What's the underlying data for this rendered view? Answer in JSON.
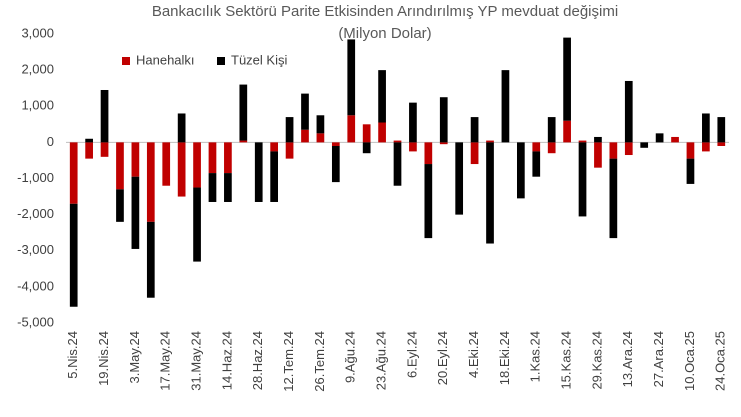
{
  "chart_data": {
    "type": "stacked_bar",
    "title": "Bankacılık Sektörü Parite Etkisinden Arındırılmış YP mevduat değişimi",
    "subtitle": "(Milyon Dolar)",
    "categories": [
      "5.Nis.24",
      null,
      "19.Nis.24",
      null,
      "3.May.24",
      null,
      "17.May.24",
      null,
      "31.May.24",
      null,
      "14.Haz.24",
      null,
      "28.Haz.24",
      null,
      "12.Tem.24",
      null,
      "26.Tem.24",
      null,
      "9.Ağu.24",
      null,
      "23.Ağu.24",
      null,
      "6.Eyl.24",
      null,
      "20.Eyl.24",
      null,
      "4.Eki.24",
      null,
      "18.Eki.24",
      null,
      "1.Kas.24",
      null,
      "15.Kas.24",
      null,
      "29.Kas.24",
      null,
      "13.Ara.24",
      null,
      "27.Ara.24",
      null,
      "10.Oca.25",
      null,
      "24.Oca.25"
    ],
    "series": [
      {
        "name": "Hanehalkı",
        "color": "#c00000",
        "values": [
          -1700,
          -450,
          -400,
          -1300,
          -950,
          -2200,
          -1200,
          -1500,
          -1250,
          -850,
          -850,
          50,
          0,
          -250,
          -450,
          350,
          250,
          -100,
          750,
          500,
          550,
          50,
          -250,
          -600,
          -50,
          0,
          -600,
          50,
          0,
          0,
          -250,
          -300,
          600,
          50,
          -700,
          -450,
          -350,
          0,
          0,
          150,
          -450,
          -250,
          -100
        ]
      },
      {
        "name": "Tüzel Kişi",
        "color": "#000000",
        "values": [
          -2850,
          100,
          1450,
          -900,
          -2000,
          -2100,
          0,
          800,
          -2050,
          -800,
          -800,
          1550,
          -1650,
          -1400,
          700,
          1000,
          500,
          -1000,
          2100,
          -300,
          1450,
          -1200,
          1100,
          -2050,
          1250,
          -2000,
          700,
          -2800,
          2000,
          -1550,
          -700,
          700,
          2300,
          -2050,
          150,
          -2200,
          1700,
          -150,
          250,
          0,
          -700,
          800,
          700
        ]
      }
    ],
    "ylim": [
      -5000,
      3000
    ],
    "yticks": [
      {
        "value": -5000,
        "label": "-5,000"
      },
      {
        "value": -4000,
        "label": "-4,000"
      },
      {
        "value": -3000,
        "label": "-3,000"
      },
      {
        "value": -2000,
        "label": "-2,000"
      },
      {
        "value": -1000,
        "label": "-1,000"
      },
      0,
      {
        "value": 1000,
        "label": "1,000"
      },
      {
        "value": 2000,
        "label": "2,000"
      },
      {
        "value": 3000,
        "label": "3,000"
      }
    ],
    "legend": "top-left"
  }
}
